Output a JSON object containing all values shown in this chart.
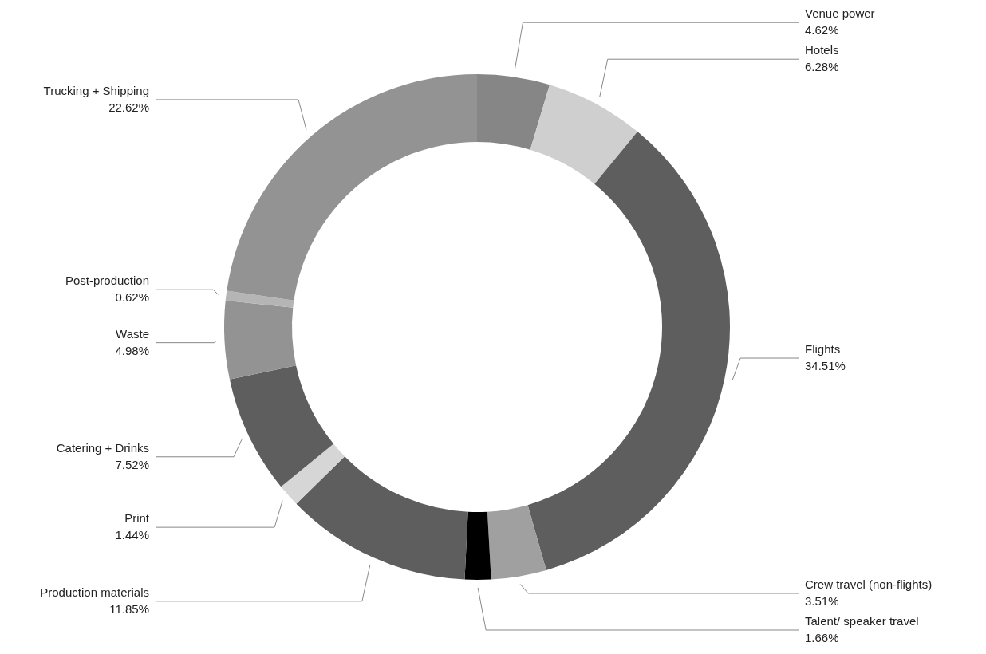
{
  "chart_data": {
    "type": "donut",
    "categories": [
      "Venue power",
      "Hotels",
      "Flights",
      "Crew travel (non-flights)",
      "Talent/ speaker travel",
      "Production materials",
      "Print",
      "Catering + Drinks",
      "Waste",
      "Post-production",
      "Trucking + Shipping"
    ],
    "values": [
      4.62,
      6.28,
      34.51,
      3.51,
      1.66,
      11.85,
      1.44,
      7.52,
      4.98,
      0.62,
      22.62
    ],
    "value_labels": [
      "4.62%",
      "6.28%",
      "34.51%",
      "3.51%",
      "1.66%",
      "11.85%",
      "1.44%",
      "7.52%",
      "4.98%",
      "0.62%",
      "22.62%"
    ],
    "colors": [
      "#868686",
      "#cfcfcf",
      "#5e5e5e",
      "#a0a0a0",
      "#000000",
      "#5e5e5e",
      "#d6d6d6",
      "#5e5e5e",
      "#939393",
      "#b5b5b5",
      "#939393"
    ]
  }
}
